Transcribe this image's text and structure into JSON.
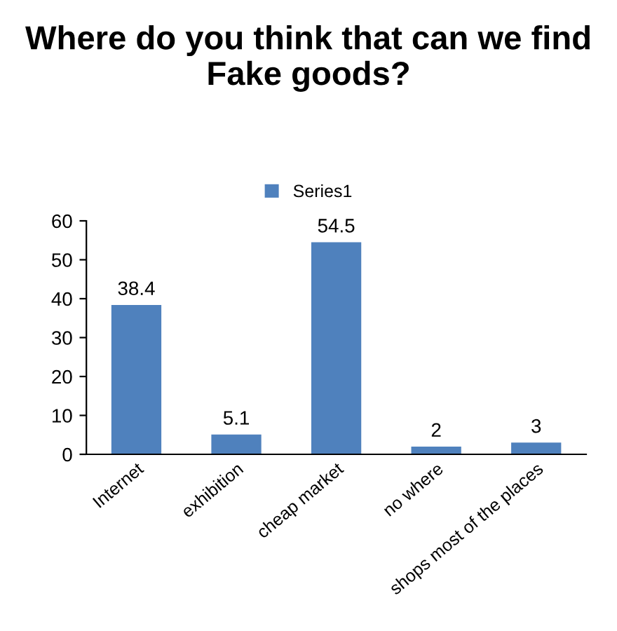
{
  "chart_data": {
    "type": "bar",
    "title": "Where do you think that can we find Fake goods?",
    "categories": [
      "Internet",
      "exhibition",
      "cheap market",
      "no where",
      "shops most of the places"
    ],
    "series": [
      {
        "name": "Series1",
        "color": "#4f81bd",
        "values": [
          38.4,
          5.1,
          54.5,
          2,
          3
        ]
      }
    ],
    "ylim": [
      0,
      60
    ],
    "yticks": [
      0,
      10,
      20,
      30,
      40,
      50,
      60
    ],
    "grid": false,
    "legend": "top",
    "data_labels": true
  }
}
